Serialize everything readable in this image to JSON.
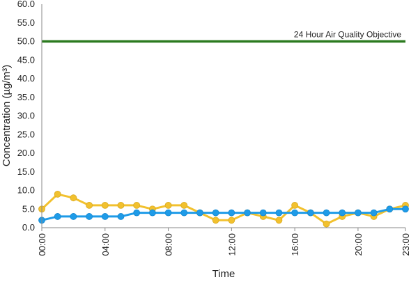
{
  "chart_data": {
    "type": "line",
    "xlabel": "Time",
    "ylabel": "Concentration (µg/m³)",
    "ylim": [
      0,
      60
    ],
    "y_ticks": [
      "0.0",
      "5.0",
      "10.0",
      "15.0",
      "20.0",
      "25.0",
      "30.0",
      "35.0",
      "40.0",
      "45.0",
      "50.0",
      "55.0",
      "60.0"
    ],
    "x_ticks": [
      "00:00",
      "04:00",
      "08:00",
      "12:00",
      "16:00",
      "20:00",
      "23:00"
    ],
    "x": [
      "00:00",
      "01:00",
      "02:00",
      "03:00",
      "04:00",
      "05:00",
      "06:00",
      "07:00",
      "08:00",
      "09:00",
      "10:00",
      "11:00",
      "12:00",
      "13:00",
      "14:00",
      "15:00",
      "16:00",
      "17:00",
      "18:00",
      "19:00",
      "20:00",
      "21:00",
      "22:00",
      "23:00"
    ],
    "series": [
      {
        "color": "#f2c12e",
        "values": [
          5,
          9,
          8,
          6,
          6,
          6,
          6,
          5,
          6,
          6,
          4,
          2,
          2,
          4,
          3,
          2,
          6,
          4,
          1,
          3,
          4,
          3,
          5,
          6
        ]
      },
      {
        "color": "#1e9be8",
        "values": [
          2,
          3,
          3,
          3,
          3,
          3,
          4,
          4,
          4,
          4,
          4,
          4,
          4,
          4,
          4,
          4,
          4,
          4,
          4,
          4,
          4,
          4,
          5,
          5
        ]
      }
    ],
    "reference_line": {
      "value": 50,
      "label": "24 Hour Air Quality Objective",
      "color": "#2b7a1f"
    },
    "grid": false,
    "legend": "none"
  }
}
